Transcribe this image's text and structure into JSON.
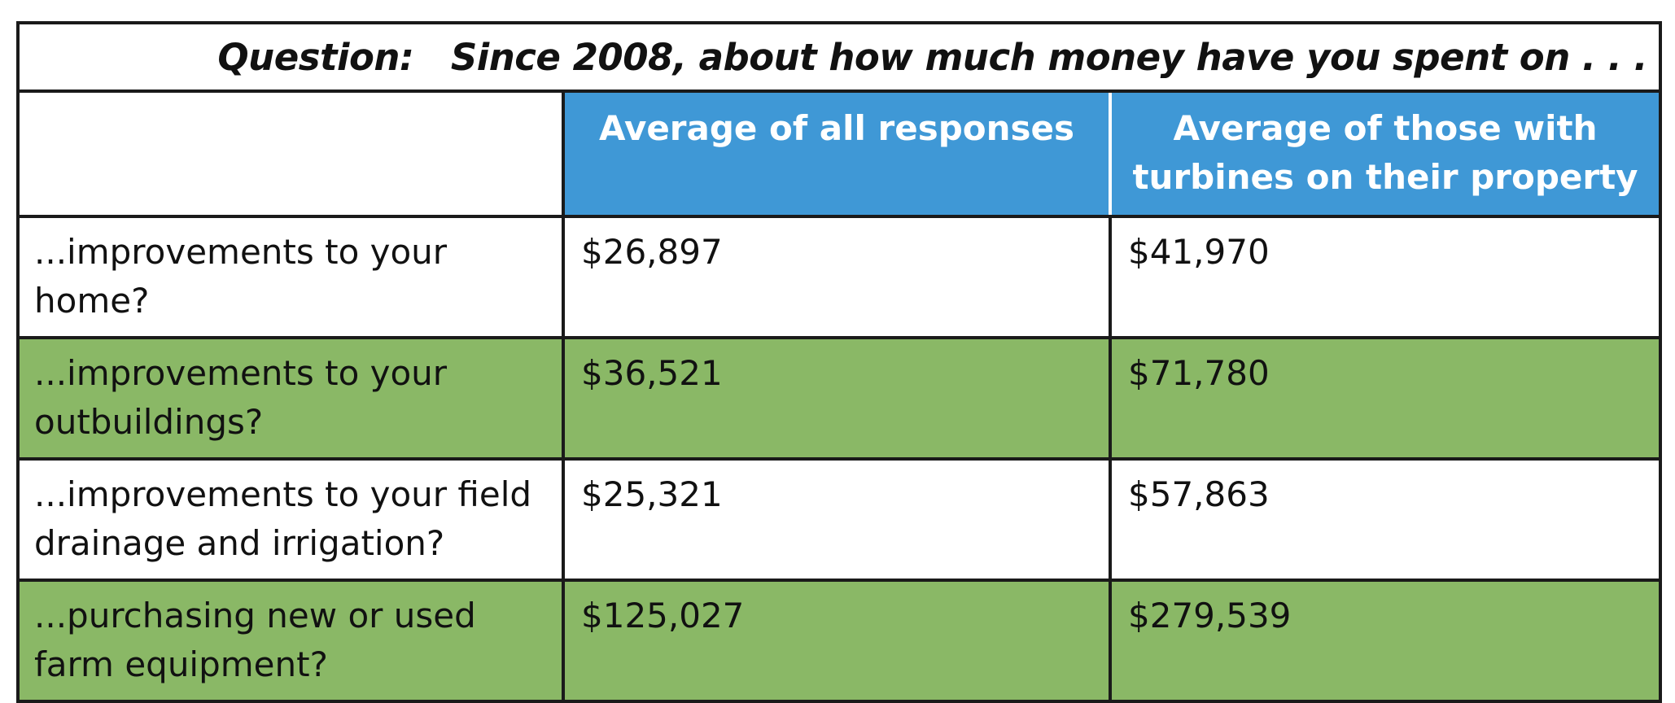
{
  "chart_data": {
    "type": "table",
    "title": "Question:   Since 2008, about how much money have you spent on . . .",
    "columns": [
      "",
      "Average of all responses",
      "Average of those with turbines on their property"
    ],
    "rows": [
      {
        "label": "...improvements to your home?",
        "values": [
          "$26,897",
          "$41,970"
        ],
        "shaded": false
      },
      {
        "label": "...improvements to your outbuildings?",
        "values": [
          "$36,521",
          "$71,780"
        ],
        "shaded": true
      },
      {
        "label": "...improvements to your field drainage and irrigation?",
        "values": [
          "$25,321",
          "$57,863"
        ],
        "shaded": false
      },
      {
        "label": "...purchasing new or used farm equipment?",
        "values": [
          "$125,027",
          "$279,539"
        ],
        "shaded": true
      }
    ]
  },
  "colors": {
    "header_blue": "#3f98d6",
    "row_green": "#8ab866",
    "border": "#1a1a1a"
  }
}
